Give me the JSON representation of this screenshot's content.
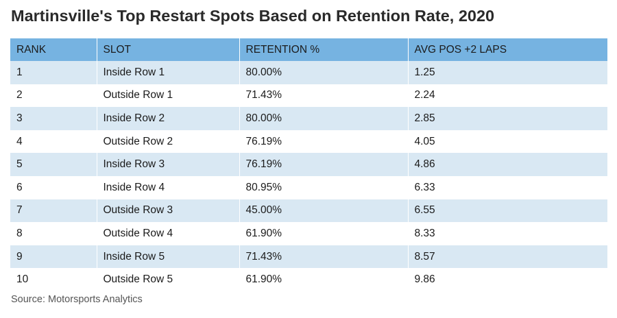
{
  "title": "Martinsville's Top Restart Spots Based on Retention Rate, 2020",
  "source": "Source: Motorsports Analytics",
  "colors": {
    "header_bg": "#76b3e1",
    "stripe_bg": "#d9e8f3",
    "plain_bg": "#ffffff"
  },
  "chart_data": {
    "type": "table",
    "title": "Martinsville's Top Restart Spots Based on Retention Rate, 2020",
    "columns": [
      "RANK",
      "SLOT",
      "RETENTION %",
      "AVG POS +2 LAPS"
    ],
    "rows": [
      [
        "1",
        "Inside Row 1",
        "80.00%",
        "1.25"
      ],
      [
        "2",
        "Outside Row 1",
        "71.43%",
        "2.24"
      ],
      [
        "3",
        "Inside Row 2",
        "80.00%",
        "2.85"
      ],
      [
        "4",
        "Outside Row 2",
        "76.19%",
        "4.05"
      ],
      [
        "5",
        "Inside Row 3",
        "76.19%",
        "4.86"
      ],
      [
        "6",
        "Inside Row 4",
        "80.95%",
        "6.33"
      ],
      [
        "7",
        "Outside Row 3",
        "45.00%",
        "6.55"
      ],
      [
        "8",
        "Outside Row 4",
        "61.90%",
        "8.33"
      ],
      [
        "9",
        "Inside Row 5",
        "71.43%",
        "8.57"
      ],
      [
        "10",
        "Outside Row 5",
        "61.90%",
        "9.86"
      ]
    ],
    "source": "Source: Motorsports Analytics"
  }
}
